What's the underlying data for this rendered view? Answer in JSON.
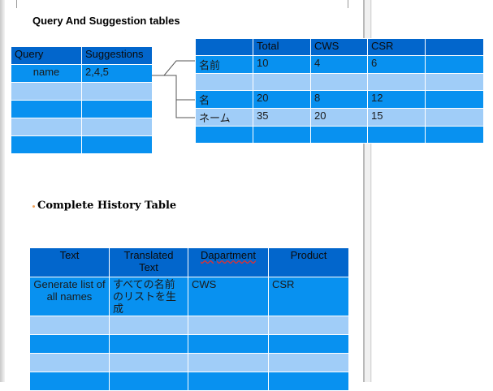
{
  "doc": {
    "heading1": "Query And Suggestion tables",
    "heading2": "Complete History Table"
  },
  "query_table": {
    "headers": [
      "Query",
      "Suggestions"
    ],
    "rows": [
      [
        "name",
        "2,4,5"
      ],
      [
        "",
        ""
      ],
      [
        "",
        ""
      ],
      [
        "",
        ""
      ],
      [
        "",
        ""
      ]
    ]
  },
  "suggestion_table": {
    "headers": [
      "",
      "Total",
      "CWS",
      "CSR",
      ""
    ],
    "rows": [
      [
        "名前",
        "10",
        "4",
        "6",
        ""
      ],
      [
        "",
        "",
        "",
        "",
        ""
      ],
      [
        "名",
        "20",
        "8",
        "12",
        ""
      ],
      [
        "ネーム",
        "35",
        "20",
        "15",
        ""
      ],
      [
        "",
        "",
        "",
        "",
        ""
      ]
    ]
  },
  "history_table": {
    "headers": [
      "Text",
      "Translated Text",
      "Dapartment",
      "Product"
    ],
    "rows": [
      [
        "Generate list of all names",
        "すべての名前のリストを生成",
        "CWS",
        "CSR"
      ],
      [
        "",
        "",
        "",
        ""
      ],
      [
        "",
        "",
        "",
        ""
      ],
      [
        "",
        "",
        "",
        ""
      ],
      [
        "",
        "",
        "",
        ""
      ]
    ]
  },
  "colors": {
    "header_blue": "#0266cc",
    "row_blue": "#0891f0",
    "row_light": "#a0cdf8"
  }
}
